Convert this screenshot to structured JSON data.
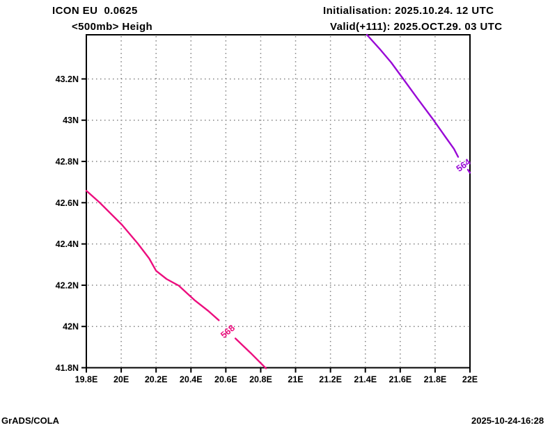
{
  "header": {
    "model_line": "ICON EU  0.0625",
    "level_line": "<500mb> Heigh",
    "init_line": "Initialisation: 2025.10.24. 12 UTC",
    "valid_line": "Valid(+111): 2025.OCT.29. 03 UTC"
  },
  "footer": {
    "brand": "GrADS/COLA",
    "timestamp": "2025-10-24-16:28"
  },
  "chart_data": {
    "type": "contour_map",
    "title": "<500mb> Heigh",
    "xlabel": "",
    "ylabel": "",
    "xlim": [
      19.8,
      22.0
    ],
    "ylim": [
      41.8,
      43.414
    ],
    "grid": true,
    "grid_color": "#818181",
    "x_ticks": [
      {
        "label": "19.8E",
        "value": 19.8
      },
      {
        "label": "20E",
        "value": 20.0
      },
      {
        "label": "20.2E",
        "value": 20.2
      },
      {
        "label": "20.4E",
        "value": 20.4
      },
      {
        "label": "20.6E",
        "value": 20.6
      },
      {
        "label": "20.8E",
        "value": 20.8
      },
      {
        "label": "21E",
        "value": 21.0
      },
      {
        "label": "21.2E",
        "value": 21.2
      },
      {
        "label": "21.4E",
        "value": 21.4
      },
      {
        "label": "21.6E",
        "value": 21.6
      },
      {
        "label": "21.8E",
        "value": 21.8
      },
      {
        "label": "22E",
        "value": 22.0
      }
    ],
    "y_ticks": [
      {
        "label": "43.2N",
        "value": 43.2
      },
      {
        "label": "43N",
        "value": 43.0
      },
      {
        "label": "42.8N",
        "value": 42.8
      },
      {
        "label": "42.6N",
        "value": 42.6
      },
      {
        "label": "42.4N",
        "value": 42.4
      },
      {
        "label": "42.2N",
        "value": 42.2
      },
      {
        "label": "42N",
        "value": 42.0
      },
      {
        "label": "41.8N",
        "value": 41.8
      }
    ],
    "contours": [
      {
        "value": 568,
        "label": "568",
        "color": "#EC0E7E",
        "label_at": [
          20.61,
          41.976
        ],
        "label_angle": -40,
        "segments": [
          [
            [
              19.8,
              42.658
            ],
            [
              19.876,
              42.601
            ],
            [
              20.004,
              42.493
            ],
            [
              20.095,
              42.402
            ],
            [
              20.16,
              42.33
            ],
            [
              20.2,
              42.27
            ],
            [
              20.26,
              42.23
            ],
            [
              20.33,
              42.198
            ],
            [
              20.42,
              42.128
            ],
            [
              20.5,
              42.075
            ],
            [
              20.56,
              42.03
            ]
          ],
          [
            [
              20.655,
              41.942
            ],
            [
              20.742,
              41.872
            ],
            [
              20.83,
              41.797
            ]
          ]
        ]
      },
      {
        "value": 564,
        "label": "564",
        "color": "#9909D6",
        "label_at": [
          21.962,
          42.782
        ],
        "label_angle": -36,
        "segments": [
          [
            [
              21.409,
              43.414
            ],
            [
              21.481,
              43.347
            ],
            [
              21.549,
              43.279
            ],
            [
              21.613,
              43.205
            ],
            [
              21.7,
              43.104
            ],
            [
              21.784,
              43.009
            ],
            [
              21.86,
              42.918
            ],
            [
              21.908,
              42.861
            ],
            [
              21.932,
              42.822
            ]
          ],
          [
            [
              21.988,
              42.76
            ],
            [
              22.0,
              42.745
            ]
          ]
        ]
      }
    ]
  }
}
